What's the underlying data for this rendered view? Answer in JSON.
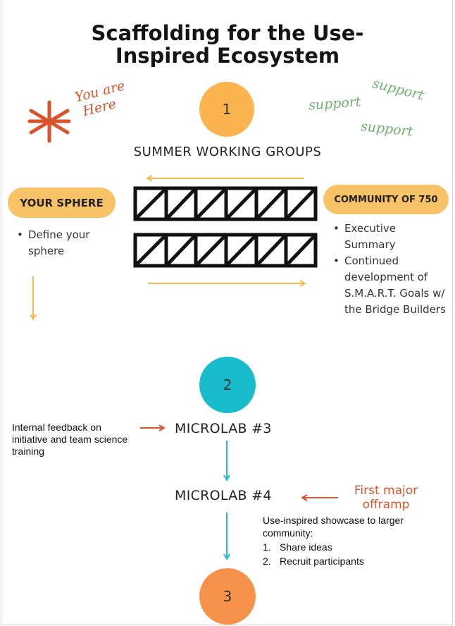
{
  "title_line1": "Scaffolding for the Use-",
  "title_line2": "Inspired Ecosystem",
  "you_are_here_1": "You are",
  "you_are_here_2": "Here",
  "support_labels": [
    "support",
    "support",
    "support"
  ],
  "step1": {
    "number": "1",
    "label": "SUMMER WORKING GROUPS"
  },
  "your_sphere": {
    "label": "YOUR SPHERE",
    "bullets": [
      "Define your sphere"
    ]
  },
  "community": {
    "label": "COMMUNITY OF 750",
    "bullets": [
      "Executive Summary",
      "Continued development of S.M.A.R.T. Goals w/ the Bridge Builders"
    ]
  },
  "step2": {
    "number": "2"
  },
  "feedback_note": "Internal feedback on initiative and team science training",
  "microlab3": "MICROLAB #3",
  "microlab4": "MICROLAB #4",
  "offramp_1": "First major",
  "offramp_2": "offramp",
  "showcase": {
    "intro": "Use-inspired showcase to larger community:",
    "items": [
      "Share ideas",
      "Recruit participants"
    ]
  },
  "step3": {
    "number": "3"
  },
  "colors": {
    "orange_circle": "#fbb450",
    "teal_circle": "#18bccc",
    "dark_orange_circle": "#f8914a",
    "pill": "#f8c267",
    "red": "#d9532b",
    "green": "#6bb36e",
    "arrow_orange": "#f9b94b",
    "arrow_teal": "#22bdd0"
  }
}
